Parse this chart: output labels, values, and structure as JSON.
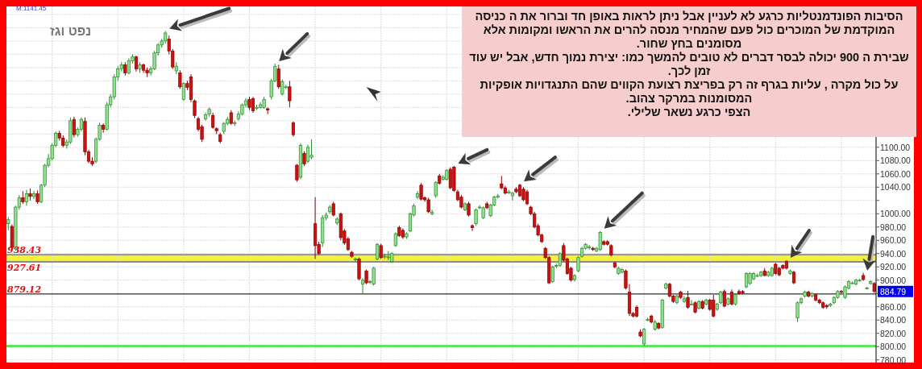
{
  "chart_data": {
    "type": "candlestick",
    "title": "נפט וגז",
    "annotations": [
      "M:1141.45",
      "הסיבות הפונדמנטליות כרגע לא לעניין אבל ניתן לראות באופן חד וברור את ה כניסה המוקדמת של המוכרים כול פעם שהמחיר מנסה להרים את הראשו ומקומות אלא מסומנים בחץ שחור.",
      "שבירת ה 900 יכולה לבסר דברים לא טובים להמשך כמו: יצירת נמוך חדש, אבל יש עוד זמן לכך.",
      "על כול מקרה , עליות בגרף זה רק בפריצת רצועת הקווים שהם התנגדויות אופקיות המסומנות במרקר צהוב.",
      "הצפי כרגע נשאר שלילי.",
      "884.79"
    ],
    "categories": [
      null,
      null,
      null,
      null,
      null,
      null,
      null,
      null,
      null,
      null,
      null,
      null,
      null,
      null,
      null,
      null,
      null,
      null,
      null,
      null,
      null,
      null,
      null,
      null,
      null,
      null,
      null,
      null,
      null,
      null,
      null,
      null,
      null,
      null,
      null,
      null,
      null,
      null,
      null,
      null,
      null,
      null,
      null,
      null,
      null,
      null,
      null,
      null,
      null,
      null,
      null,
      null,
      null,
      null,
      null,
      null,
      null,
      null,
      null,
      null,
      null,
      null,
      null,
      null,
      null,
      null,
      null,
      null,
      null,
      null,
      null,
      null,
      null,
      null,
      null,
      null,
      null,
      null,
      null,
      null,
      null,
      null,
      null,
      null,
      null,
      null,
      null,
      null,
      null,
      null,
      null,
      null,
      null,
      null,
      null,
      null,
      null,
      null,
      null,
      null,
      null,
      null,
      null,
      null,
      null,
      null,
      null,
      null,
      null,
      null,
      null,
      null,
      null,
      null,
      null,
      null,
      null,
      null,
      null,
      null,
      null,
      null,
      null,
      null,
      null,
      null,
      null,
      null,
      null,
      null,
      null,
      null,
      null,
      null,
      null,
      null,
      null,
      null,
      null,
      null,
      null,
      null,
      null,
      null,
      null,
      null,
      null,
      null,
      null,
      null,
      null,
      null,
      null,
      null,
      null,
      null,
      null,
      null,
      null,
      null,
      null,
      null,
      null,
      null,
      null,
      null,
      null,
      null,
      null,
      null,
      null,
      null,
      null,
      null,
      null,
      null,
      null,
      null,
      null,
      null,
      null,
      null,
      null,
      null,
      null,
      null,
      null,
      null,
      null,
      null,
      null,
      null,
      null,
      null,
      null,
      null,
      null,
      null,
      null,
      null,
      null,
      null,
      null,
      null,
      null,
      null,
      null,
      null,
      null,
      null,
      null,
      null,
      null,
      null,
      null,
      null,
      null,
      null,
      null,
      null,
      null,
      null,
      null,
      null,
      null,
      null,
      null,
      null,
      null,
      null,
      null,
      null,
      null,
      null,
      null,
      null,
      null,
      null
    ],
    "ohlc": [
      [
        985,
        995,
        975,
        991
      ],
      [
        981,
        984,
        945,
        949
      ],
      [
        947,
        1012,
        944,
        1010
      ],
      [
        1010,
        1028,
        1006,
        1024
      ],
      [
        1024,
        1034,
        1015,
        1018
      ],
      [
        1018,
        1036,
        1012,
        1030
      ],
      [
        1030,
        1038,
        1020,
        1026
      ],
      [
        1026,
        1034,
        1022,
        1030
      ],
      [
        1030,
        1035,
        1015,
        1018
      ],
      [
        1018,
        1045,
        1016,
        1043
      ],
      [
        1043,
        1075,
        1040,
        1073
      ],
      [
        1073,
        1090,
        1070,
        1083
      ],
      [
        1083,
        1106,
        1080,
        1103
      ],
      [
        1103,
        1124,
        1100,
        1121
      ],
      [
        1121,
        1125,
        1110,
        1114
      ],
      [
        1114,
        1118,
        1100,
        1103
      ],
      [
        1103,
        1112,
        1098,
        1108
      ],
      [
        1108,
        1145,
        1105,
        1140
      ],
      [
        1142,
        1146,
        1115,
        1119
      ],
      [
        1119,
        1130,
        1116,
        1127
      ],
      [
        1127,
        1145,
        1124,
        1142
      ],
      [
        1139,
        1145,
        1088,
        1093
      ],
      [
        1093,
        1096,
        1076,
        1079
      ],
      [
        1079,
        1085,
        1072,
        1075
      ],
      [
        1079,
        1115,
        1076,
        1112
      ],
      [
        1112,
        1137,
        1110,
        1133
      ],
      [
        1133,
        1136,
        1122,
        1127
      ],
      [
        1127,
        1168,
        1125,
        1164
      ],
      [
        1164,
        1180,
        1160,
        1176
      ],
      [
        1176,
        1210,
        1172,
        1206
      ],
      [
        1206,
        1222,
        1200,
        1218
      ],
      [
        1218,
        1228,
        1214,
        1224
      ],
      [
        1224,
        1228,
        1208,
        1212
      ],
      [
        1212,
        1234,
        1210,
        1230
      ],
      [
        1230,
        1240,
        1226,
        1236
      ],
      [
        1236,
        1238,
        1214,
        1218
      ],
      [
        1218,
        1228,
        1212,
        1224
      ],
      [
        1224,
        1226,
        1212,
        1216
      ],
      [
        1216,
        1220,
        1206,
        1212
      ],
      [
        1212,
        1222,
        1208,
        1218
      ],
      [
        1218,
        1245,
        1216,
        1242
      ],
      [
        1242,
        1257,
        1238,
        1254
      ],
      [
        1254,
        1263,
        1250,
        1260
      ],
      [
        1260,
        1275,
        1256,
        1272
      ],
      [
        1263,
        1268,
        1240,
        1245
      ],
      [
        1245,
        1248,
        1218,
        1221
      ],
      [
        1215,
        1228,
        1210,
        1222
      ],
      [
        1212,
        1216,
        1188,
        1191
      ],
      [
        1172,
        1198,
        1170,
        1196
      ],
      [
        1196,
        1200,
        1186,
        1190
      ],
      [
        1206,
        1210,
        1168,
        1172
      ],
      [
        1170,
        1172,
        1144,
        1148
      ],
      [
        1143,
        1146,
        1124,
        1127
      ],
      [
        1131,
        1134,
        1108,
        1112
      ],
      [
        1143,
        1152,
        1140,
        1149
      ],
      [
        1150,
        1160,
        1146,
        1157
      ],
      [
        1148,
        1152,
        1128,
        1130
      ],
      [
        1128,
        1130,
        1120,
        1125
      ],
      [
        1119,
        1122,
        1106,
        1109
      ],
      [
        1124,
        1138,
        1120,
        1136
      ],
      [
        1136,
        1146,
        1133,
        1142
      ],
      [
        1152,
        1156,
        1134,
        1136
      ],
      [
        1137,
        1140,
        1132,
        1137
      ],
      [
        1143,
        1154,
        1140,
        1150
      ],
      [
        1150,
        1166,
        1148,
        1164
      ],
      [
        1164,
        1174,
        1160,
        1170
      ],
      [
        1172,
        1176,
        1156,
        1160
      ],
      [
        1173,
        1176,
        1152,
        1155
      ],
      [
        1160,
        1164,
        1156,
        1160
      ],
      [
        1160,
        1168,
        1158,
        1164
      ],
      [
        1160,
        1176,
        1158,
        1172
      ],
      [
        1158,
        1160,
        1150,
        1156
      ],
      [
        1176,
        1203,
        1172,
        1200
      ],
      [
        1200,
        1226,
        1198,
        1222
      ],
      [
        1218,
        1224,
        1188,
        1191
      ],
      [
        1180,
        1202,
        1178,
        1199
      ],
      [
        1191,
        1194,
        1188,
        1191
      ],
      [
        1191,
        1200,
        1160,
        1170
      ],
      [
        1137,
        1139,
        1116,
        1119
      ],
      [
        1073,
        1075,
        1048,
        1051
      ],
      [
        1055,
        1106,
        1052,
        1103
      ],
      [
        1091,
        1094,
        1072,
        1075
      ],
      [
        1079,
        1104,
        1076,
        1100
      ],
      [
        1085,
        1112,
        1082,
        1088
      ],
      [
        985,
        1025,
        932,
        952
      ],
      [
        954,
        958,
        938,
        940
      ],
      [
        956,
        998,
        950,
        994
      ],
      [
        994,
        1002,
        990,
        998
      ],
      [
        1003,
        1013,
        1000,
        1010
      ],
      [
        1015,
        1018,
        996,
        998
      ],
      [
        986,
        995,
        983,
        992
      ],
      [
        1000,
        1002,
        960,
        964
      ],
      [
        974,
        977,
        953,
        956
      ],
      [
        962,
        965,
        944,
        946
      ],
      [
        942,
        944,
        934,
        936
      ],
      [
        932,
        934,
        928,
        932
      ],
      [
        932,
        934,
        900,
        902
      ],
      [
        894,
        903,
        880,
        900
      ],
      [
        914,
        916,
        894,
        896
      ],
      [
        898,
        900,
        894,
        898
      ],
      [
        894,
        920,
        892,
        918
      ],
      [
        932,
        956,
        930,
        954
      ],
      [
        952,
        955,
        932,
        934
      ],
      [
        936,
        940,
        932,
        936
      ],
      [
        934,
        944,
        930,
        935
      ],
      [
        928,
        942,
        926,
        940
      ],
      [
        952,
        972,
        950,
        970
      ],
      [
        979,
        982,
        965,
        967
      ],
      [
        975,
        978,
        962,
        965
      ],
      [
        965,
        972,
        962,
        970
      ],
      [
        974,
        1002,
        972,
        1000
      ],
      [
        998,
        1015,
        996,
        1012
      ],
      [
        1025,
        1034,
        1022,
        1030
      ],
      [
        1043,
        1046,
        1020,
        1022
      ],
      [
        1024,
        1026,
        1018,
        1021
      ],
      [
        1021,
        1024,
        1001,
        1003
      ],
      [
        1000,
        1006,
        998,
        1002
      ],
      [
        1027,
        1049,
        1024,
        1047
      ],
      [
        1057,
        1060,
        1044,
        1046
      ],
      [
        1052,
        1058,
        1050,
        1055
      ],
      [
        1052,
        1067,
        1050,
        1065
      ],
      [
        1067,
        1070,
        1037,
        1039
      ],
      [
        1070,
        1072,
        1033,
        1035
      ],
      [
        1033,
        1036,
        1019,
        1021
      ],
      [
        1025,
        1028,
        1008,
        1010
      ],
      [
        1006,
        1017,
        1004,
        1015
      ],
      [
        1015,
        1018,
        996,
        998
      ],
      [
        982,
        984,
        974,
        979
      ],
      [
        985,
        1008,
        982,
        1006
      ],
      [
        1010,
        1013,
        1007,
        1010
      ],
      [
        994,
        1011,
        992,
        1009
      ],
      [
        1015,
        1018,
        1007,
        1009
      ],
      [
        997,
        1015,
        995,
        1013
      ],
      [
        1013,
        1027,
        1011,
        1025
      ],
      [
        1025,
        1030,
        1023,
        1027
      ],
      [
        1045,
        1057,
        1037,
        1039
      ],
      [
        1039,
        1042,
        1029,
        1031
      ],
      [
        1031,
        1036,
        1030,
        1033
      ],
      [
        1027,
        1033,
        1020,
        1031
      ],
      [
        1037,
        1040,
        1031,
        1033
      ],
      [
        1043,
        1045,
        1025,
        1027
      ],
      [
        1037,
        1040,
        1019,
        1021
      ],
      [
        1033,
        1036,
        1013,
        1015
      ],
      [
        1010,
        1012,
        998,
        1000
      ],
      [
        1000,
        1003,
        978,
        980
      ],
      [
        982,
        985,
        966,
        968
      ],
      [
        968,
        970,
        956,
        958
      ],
      [
        948,
        950,
        932,
        934
      ],
      [
        934,
        936,
        894,
        896
      ],
      [
        898,
        922,
        896,
        920
      ],
      [
        922,
        925,
        918,
        922
      ],
      [
        922,
        942,
        920,
        940
      ],
      [
        952,
        956,
        928,
        930
      ],
      [
        932,
        934,
        908,
        910
      ],
      [
        918,
        920,
        898,
        900
      ],
      [
        901,
        909,
        898,
        907
      ],
      [
        914,
        936,
        912,
        934
      ],
      [
        936,
        950,
        934,
        948
      ],
      [
        948,
        956,
        946,
        954
      ],
      [
        950,
        953,
        946,
        950
      ],
      [
        948,
        950,
        944,
        946
      ],
      [
        944,
        950,
        942,
        948
      ],
      [
        946,
        974,
        944,
        972
      ],
      [
        958,
        960,
        952,
        954
      ],
      [
        958,
        960,
        952,
        954
      ],
      [
        952,
        954,
        936,
        938
      ],
      [
        926,
        928,
        918,
        920
      ],
      [
        910,
        920,
        908,
        918
      ],
      [
        912,
        918,
        910,
        916
      ],
      [
        914,
        916,
        886,
        888
      ],
      [
        882,
        894,
        846,
        850
      ],
      [
        850,
        852,
        844,
        846
      ],
      [
        859,
        862,
        844,
        846
      ],
      [
        822,
        826,
        814,
        816
      ],
      [
        804,
        828,
        801,
        826
      ],
      [
        841,
        844,
        838,
        841
      ],
      [
        846,
        848,
        835,
        837
      ],
      [
        826,
        840,
        824,
        837
      ],
      [
        835,
        837,
        826,
        828
      ],
      [
        829,
        872,
        827,
        870
      ],
      [
        888,
        896,
        886,
        894
      ],
      [
        894,
        896,
        874,
        876
      ],
      [
        876,
        878,
        866,
        868
      ],
      [
        866,
        878,
        864,
        876
      ],
      [
        882,
        884,
        872,
        874
      ],
      [
        868,
        876,
        866,
        872
      ],
      [
        874,
        884,
        857,
        859
      ],
      [
        864,
        870,
        862,
        864
      ],
      [
        866,
        868,
        850,
        852
      ],
      [
        858,
        870,
        856,
        868
      ],
      [
        868,
        870,
        856,
        858
      ],
      [
        864,
        872,
        862,
        870
      ],
      [
        870,
        872,
        854,
        856
      ],
      [
        870,
        878,
        844,
        846
      ],
      [
        856,
        866,
        854,
        864
      ],
      [
        866,
        884,
        864,
        882
      ],
      [
        883,
        886,
        859,
        861
      ],
      [
        864,
        874,
        862,
        872
      ],
      [
        882,
        886,
        862,
        864
      ],
      [
        864,
        880,
        862,
        878
      ],
      [
        883,
        886,
        878,
        880
      ],
      [
        883,
        885,
        879,
        881
      ],
      [
        890,
        912,
        888,
        910
      ],
      [
        895,
        912,
        893,
        910
      ],
      [
        902,
        912,
        900,
        910
      ],
      [
        907,
        910,
        905,
        907
      ],
      [
        907,
        914,
        905,
        912
      ],
      [
        914,
        918,
        906,
        907
      ],
      [
        907,
        914,
        905,
        912
      ],
      [
        907,
        920,
        905,
        918
      ],
      [
        924,
        926,
        908,
        910
      ],
      [
        918,
        920,
        906,
        908
      ],
      [
        922,
        924,
        916,
        918
      ],
      [
        928,
        930,
        916,
        918
      ],
      [
        910,
        916,
        908,
        914
      ],
      [
        912,
        914,
        894,
        896
      ],
      [
        843,
        868,
        837,
        866
      ],
      [
        866,
        874,
        864,
        872
      ],
      [
        876,
        884,
        874,
        882
      ],
      [
        882,
        884,
        874,
        876
      ],
      [
        876,
        882,
        874,
        880
      ],
      [
        878,
        880,
        868,
        870
      ],
      [
        870,
        872,
        864,
        866
      ],
      [
        866,
        868,
        857,
        859
      ],
      [
        862,
        864,
        857,
        860
      ],
      [
        862,
        866,
        860,
        864
      ],
      [
        866,
        876,
        864,
        874
      ],
      [
        874,
        885,
        872,
        883
      ],
      [
        883,
        885,
        880,
        882
      ],
      [
        874,
        892,
        872,
        890
      ],
      [
        888,
        900,
        886,
        898
      ],
      [
        896,
        898,
        894,
        896
      ],
      [
        894,
        902,
        892,
        900
      ],
      [
        900,
        902,
        898,
        900
      ],
      [
        907,
        911,
        899,
        901
      ],
      [
        888,
        890,
        886,
        888
      ],
      [
        895,
        900,
        893,
        898
      ],
      [
        895,
        897,
        881,
        883
      ]
    ],
    "ylim": [
      776,
      1312
    ],
    "yticks": [
      {
        "value": 780,
        "label": "780.00"
      },
      {
        "value": 800,
        "label": "800.00"
      },
      {
        "value": 820,
        "label": "820.00"
      },
      {
        "value": 840,
        "label": "840.00"
      },
      {
        "value": 860,
        "label": "860.00"
      },
      {
        "value": 880,
        "label": null
      },
      {
        "value": 900,
        "label": "900.00"
      },
      {
        "value": 920,
        "label": "920.00"
      },
      {
        "value": 940,
        "label": "940.00"
      },
      {
        "value": 960,
        "label": "960.00"
      },
      {
        "value": 980,
        "label": "980.00"
      },
      {
        "value": 1000,
        "label": "1000.00"
      },
      {
        "value": 1020,
        "label": null
      },
      {
        "value": 1040,
        "label": "1040.00"
      },
      {
        "value": 1060,
        "label": "1060.00"
      },
      {
        "value": 1080,
        "label": "1080.00"
      },
      {
        "value": 1100,
        "label": "1100.00"
      },
      {
        "value": 1120,
        "label": null
      },
      {
        "value": 1140,
        "label": null
      },
      {
        "value": 1160,
        "label": null
      },
      {
        "value": 1180,
        "label": null
      },
      {
        "value": 1200,
        "label": null
      },
      {
        "value": 1220,
        "label": null
      },
      {
        "value": 1240,
        "label": null
      },
      {
        "value": 1260,
        "label": null
      },
      {
        "value": 1280,
        "label": null
      },
      {
        "value": 1300,
        "label": null
      }
    ],
    "grid": true,
    "tick_labels": "y",
    "ref_lines": [
      {
        "axis": "y",
        "value": 938.43,
        "label": "938.43",
        "color": "#777777"
      },
      {
        "axis": "y",
        "value": 927.61,
        "label": "927.61",
        "color": "#777777"
      },
      {
        "axis": "y",
        "value": 879.12,
        "label": "879.12",
        "color": "#333333"
      },
      {
        "axis": "y",
        "value": 801,
        "color": "#33ee33"
      }
    ],
    "bands": [
      {
        "axis": "y",
        "from": 927.61,
        "to": 938.43,
        "color": "#f5f03c"
      }
    ]
  }
}
